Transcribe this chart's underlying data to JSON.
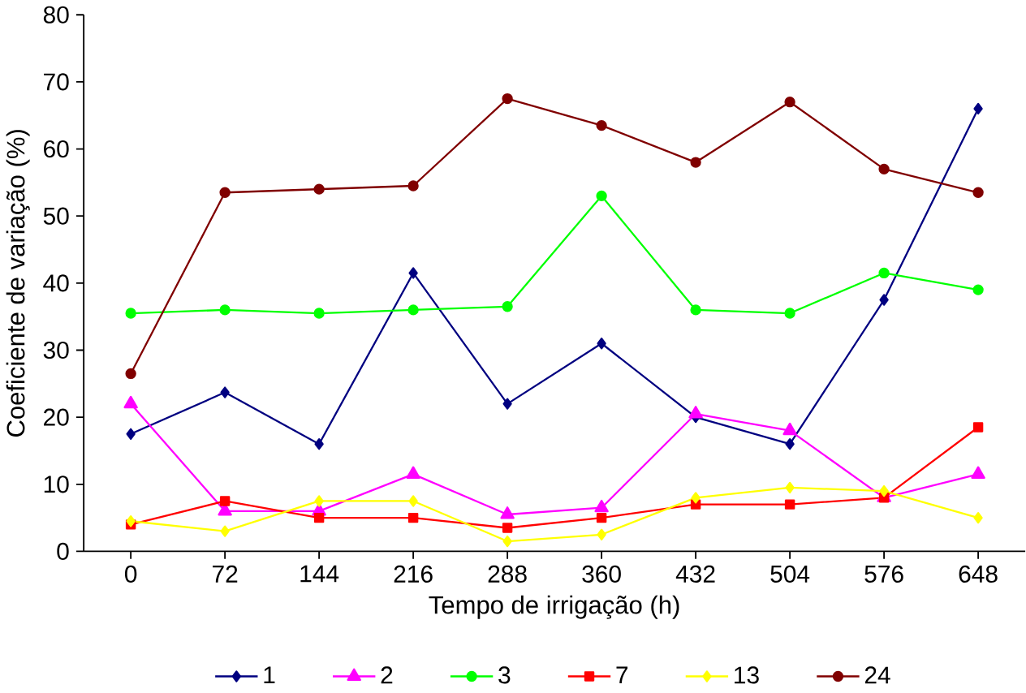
{
  "chart_data": {
    "type": "line",
    "xlabel": "Tempo de irrigação (h)",
    "ylabel": "Coeficiente de variação (%)",
    "categories": [
      "0",
      "72",
      "144",
      "216",
      "288",
      "360",
      "432",
      "504",
      "576",
      "648"
    ],
    "ylim": [
      0,
      80
    ],
    "yticks": [
      0,
      10,
      20,
      30,
      40,
      50,
      60,
      70,
      80
    ],
    "grid": false,
    "legend": "bottom",
    "line_style": "solid",
    "series": [
      {
        "name": "1",
        "color": "#000080",
        "marker": "diamond",
        "values": [
          17.5,
          23.7,
          16,
          41.5,
          22,
          31,
          20,
          16,
          37.5,
          66
        ]
      },
      {
        "name": "2",
        "color": "#ff00ff",
        "marker": "triangle",
        "values": [
          22,
          6,
          6,
          11.5,
          5.5,
          6.5,
          20.5,
          18,
          8,
          11.5
        ]
      },
      {
        "name": "3",
        "color": "#00ff00",
        "marker": "circle",
        "values": [
          35.5,
          36,
          35.5,
          36,
          36.5,
          53,
          36,
          35.5,
          41.5,
          39
        ]
      },
      {
        "name": "7",
        "color": "#ff0000",
        "marker": "square",
        "values": [
          4,
          7.5,
          5,
          5,
          3.5,
          5,
          7,
          7,
          8,
          18.5
        ]
      },
      {
        "name": "13",
        "color": "#ffff00",
        "marker": "diamond",
        "values": [
          4.5,
          3,
          7.5,
          7.5,
          1.5,
          2.5,
          8,
          9.5,
          9,
          5
        ]
      },
      {
        "name": "24",
        "color": "#800000",
        "marker": "circle",
        "values": [
          26.5,
          53.5,
          54,
          54.5,
          67.5,
          63.5,
          58,
          67,
          57,
          53.5
        ]
      }
    ]
  }
}
